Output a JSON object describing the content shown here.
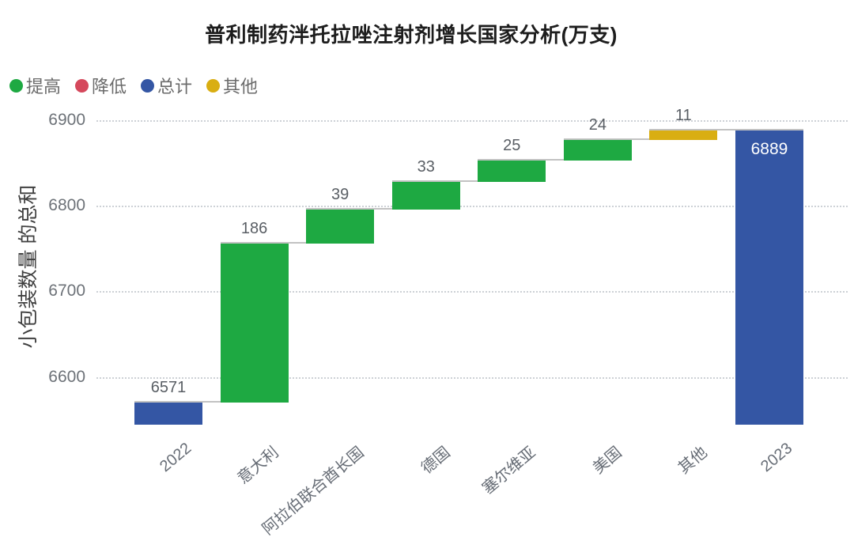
{
  "chart_data": {
    "type": "waterfall",
    "title": "普利制药泮托拉唑注射剂增长国家分析(万支)",
    "ylabel": "小包装数量 的总和",
    "xlabel": "",
    "ymin": 6545,
    "ymax": 6912,
    "yticks": [
      6600,
      6700,
      6800,
      6900
    ],
    "grid": "horizontal-dotted",
    "legend_position": "top-left",
    "legend": [
      {
        "label": "提高",
        "kind": "increase",
        "color": "#1EA942"
      },
      {
        "label": "降低",
        "kind": "decrease",
        "color": "#D5485C"
      },
      {
        "label": "总计",
        "kind": "total",
        "color": "#3456A4"
      },
      {
        "label": "其他",
        "kind": "other",
        "color": "#D9AE12"
      }
    ],
    "categories": [
      "2022",
      "意大利",
      "阿拉伯联合酋长国",
      "德国",
      "塞尔维亚",
      "美国",
      "其他",
      "2023"
    ],
    "bars": [
      {
        "category": "2022",
        "kind": "total",
        "value": 6571,
        "label": "6571",
        "label_placement": "above"
      },
      {
        "category": "意大利",
        "kind": "increase",
        "value": 186,
        "label": "186",
        "label_placement": "above"
      },
      {
        "category": "阿拉伯联合酋长国",
        "kind": "increase",
        "value": 39,
        "label": "39",
        "label_placement": "above"
      },
      {
        "category": "德国",
        "kind": "increase",
        "value": 33,
        "label": "33",
        "label_placement": "above"
      },
      {
        "category": "塞尔维亚",
        "kind": "increase",
        "value": 25,
        "label": "25",
        "label_placement": "above"
      },
      {
        "category": "美国",
        "kind": "increase",
        "value": 24,
        "label": "24",
        "label_placement": "above"
      },
      {
        "category": "其他",
        "kind": "other",
        "value": 11,
        "label": "11",
        "label_placement": "above"
      },
      {
        "category": "2023",
        "kind": "total",
        "value": 6889,
        "label": "6889",
        "label_placement": "inside-top"
      }
    ],
    "cumulative": [
      6571,
      6757,
      6796,
      6829,
      6854,
      6878,
      6889,
      6889
    ]
  },
  "colors": {
    "increase": "#1EA942",
    "decrease": "#D5485C",
    "total": "#3456A4",
    "other": "#D9AE12",
    "background": "#FFFFFF",
    "gridline": "#CDD1D6",
    "connector": "#C2C2C2",
    "title_text": "#1D1D1D",
    "axis_text": "#6D7278",
    "data_label_text": "#595E64",
    "inside_label_text": "#FFFFFF"
  }
}
